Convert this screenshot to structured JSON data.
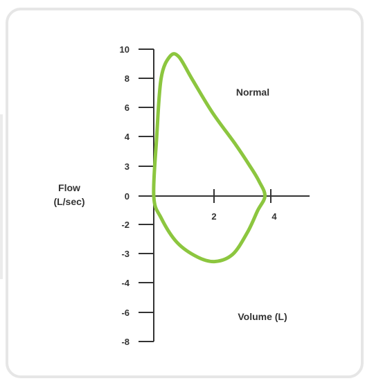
{
  "chart_data": {
    "type": "line",
    "title": "",
    "ylabel_lines": [
      "Flow",
      "(L/sec)"
    ],
    "xlabel": "Volume (L)",
    "y_tick_labels": [
      "10",
      "8",
      "6",
      "4",
      "3",
      "0",
      "-2",
      "-3",
      "-4",
      "-6",
      "-8"
    ],
    "x_tick_labels": [
      "2",
      "4"
    ],
    "annotations": [
      "Normal"
    ],
    "series": [
      {
        "color": "#8cc63f",
        "points": [
          [
            0.0,
            0.0
          ],
          [
            0.1,
            4.0
          ],
          [
            0.25,
            8.0
          ],
          [
            0.55,
            9.5
          ],
          [
            0.85,
            9.5
          ],
          [
            1.3,
            8.0
          ],
          [
            2.0,
            5.7
          ],
          [
            2.8,
            3.5
          ],
          [
            3.3,
            2.0
          ],
          [
            3.6,
            1.0
          ],
          [
            3.8,
            0.0
          ],
          [
            3.55,
            -1.0
          ],
          [
            3.2,
            -2.5
          ],
          [
            2.7,
            -4.0
          ],
          [
            2.1,
            -4.5
          ],
          [
            1.5,
            -4.2
          ],
          [
            0.8,
            -3.2
          ],
          [
            0.25,
            -1.5
          ],
          [
            0.0,
            0.0
          ]
        ]
      }
    ],
    "grid": false
  },
  "colors": {
    "curve": "#8cc63f",
    "axis": "#333333",
    "frame": "#e6e6e6"
  }
}
